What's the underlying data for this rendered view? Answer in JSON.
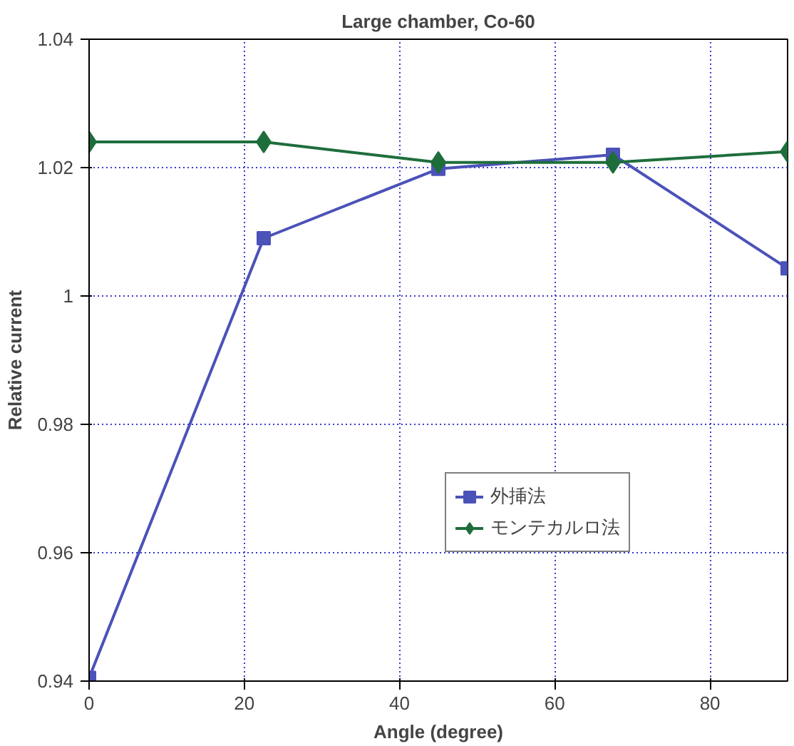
{
  "chart_data": {
    "type": "line",
    "title": "Large chamber, Co-60",
    "xlabel": "Angle (degree)",
    "ylabel": "Relative current",
    "x": [
      0,
      22.5,
      45,
      67.5,
      90
    ],
    "series": [
      {
        "name": "外挿法",
        "color": "#4b52b8",
        "marker": "square",
        "values": [
          0.9405,
          1.009,
          1.0198,
          1.022,
          1.0043
        ]
      },
      {
        "name": "モンテカルロ法",
        "color": "#1e6e3c",
        "marker": "diamond",
        "values": [
          1.024,
          1.024,
          1.0208,
          1.0208,
          1.0225
        ]
      }
    ],
    "xlim": [
      0,
      90
    ],
    "xticks": [
      0,
      20,
      40,
      60,
      80
    ],
    "ylim": [
      0.94,
      1.04
    ],
    "yticks": [
      0.94,
      0.96,
      0.98,
      1,
      1.02,
      1.04
    ],
    "grid": true,
    "legend": "right",
    "line_style": "solid"
  }
}
